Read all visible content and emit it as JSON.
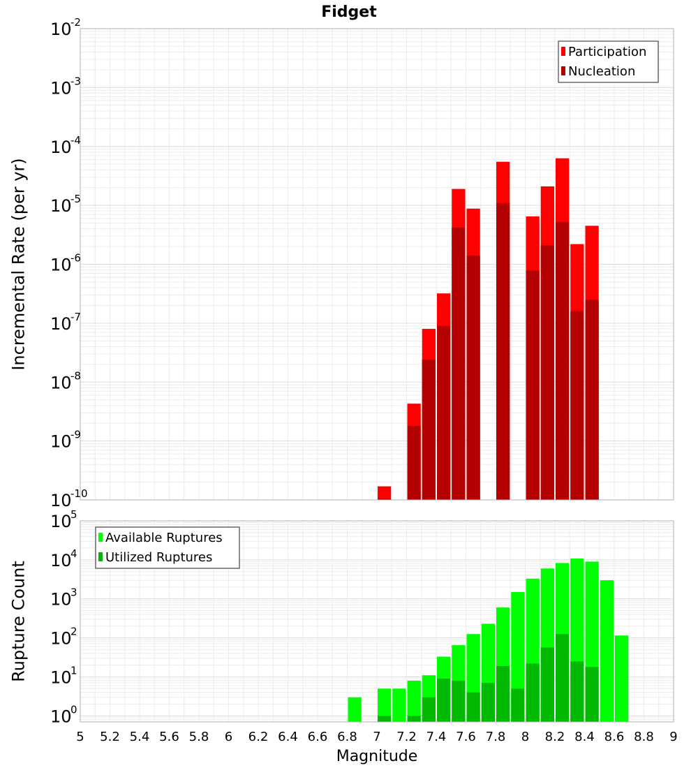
{
  "title": "Fidget",
  "xlabel": "Magnitude",
  "colors": {
    "participation": "#ff0000",
    "nucleation": "#b30000",
    "available": "#00ff00",
    "utilized": "#00b800",
    "grid": "#ececec",
    "frame": "#b0b0b0"
  },
  "chart_data": [
    {
      "type": "bar",
      "title": "Fidget",
      "ylabel": "Incremental Rate (per yr)",
      "yscale": "log",
      "ylim": [
        1e-10,
        0.01
      ],
      "xlim": [
        5,
        9
      ],
      "legend_position": "top-right",
      "x": [
        7.05,
        7.25,
        7.35,
        7.45,
        7.55,
        7.65,
        7.85,
        8.05,
        8.15,
        8.25,
        8.35,
        8.45
      ],
      "series": [
        {
          "name": "Participation",
          "values": [
            1.7e-10,
            4.3e-09,
            8e-08,
            3.2e-07,
            1.9e-05,
            8.8e-06,
            5.5e-05,
            6.5e-06,
            2.1e-05,
            6.3e-05,
            2.2e-06,
            4.5e-06
          ]
        },
        {
          "name": "Nucleation",
          "values": [
            1.05e-10,
            1.8e-09,
            2.4e-08,
            9e-08,
            4.2e-06,
            1.4e-06,
            1.1e-05,
            7.8e-07,
            2.1e-06,
            5.2e-06,
            1.6e-07,
            2.5e-07
          ]
        }
      ],
      "x_ticks": [
        "5",
        "5.2",
        "5.4",
        "5.6",
        "5.8",
        "6",
        "6.2",
        "6.4",
        "6.6",
        "6.8",
        "7",
        "7.2",
        "7.4",
        "7.6",
        "7.8",
        "8",
        "8.2",
        "8.4",
        "8.6",
        "8.8",
        "9"
      ],
      "y_ticks": [
        {
          "base": "10",
          "exp": "-10",
          "value": 1e-10
        },
        {
          "base": "10",
          "exp": "-9",
          "value": 1e-09
        },
        {
          "base": "10",
          "exp": "-8",
          "value": 1e-08
        },
        {
          "base": "10",
          "exp": "-7",
          "value": 1e-07
        },
        {
          "base": "10",
          "exp": "-6",
          "value": 1e-06
        },
        {
          "base": "10",
          "exp": "-5",
          "value": 1e-05
        },
        {
          "base": "10",
          "exp": "-4",
          "value": 0.0001
        },
        {
          "base": "10",
          "exp": "-3",
          "value": 0.001
        },
        {
          "base": "10",
          "exp": "-2",
          "value": 0.01
        }
      ],
      "grid": true
    },
    {
      "type": "bar",
      "ylabel": "Rupture Count",
      "yscale": "log",
      "ylim": [
        0.7,
        100000
      ],
      "xlim": [
        5,
        9
      ],
      "legend_position": "top-left",
      "x": [
        6.85,
        7.05,
        7.15,
        7.25,
        7.35,
        7.45,
        7.55,
        7.65,
        7.75,
        7.85,
        7.95,
        8.05,
        8.15,
        8.25,
        8.35,
        8.45,
        8.55,
        8.65
      ],
      "series": [
        {
          "name": "Available Ruptures",
          "values": [
            3,
            5,
            5,
            8,
            11,
            33,
            65,
            125,
            230,
            600,
            1500,
            3300,
            6000,
            8300,
            10800,
            9000,
            3000,
            115
          ]
        },
        {
          "name": "Utilized Ruptures",
          "values": [
            0,
            1,
            0,
            1,
            3,
            9,
            8,
            4,
            7,
            19,
            5,
            22,
            57,
            125,
            25,
            18,
            0,
            0
          ]
        }
      ],
      "x_ticks": [
        "5",
        "5.2",
        "5.4",
        "5.6",
        "5.8",
        "6",
        "6.2",
        "6.4",
        "6.6",
        "6.8",
        "7",
        "7.2",
        "7.4",
        "7.6",
        "7.8",
        "8",
        "8.2",
        "8.4",
        "8.6",
        "8.8",
        "9"
      ],
      "y_ticks": [
        {
          "base": "10",
          "exp": "0",
          "value": 1
        },
        {
          "base": "10",
          "exp": "1",
          "value": 10
        },
        {
          "base": "10",
          "exp": "2",
          "value": 100
        },
        {
          "base": "10",
          "exp": "3",
          "value": 1000
        },
        {
          "base": "10",
          "exp": "4",
          "value": 10000
        },
        {
          "base": "10",
          "exp": "5",
          "value": 100000
        }
      ],
      "grid": true
    }
  ]
}
